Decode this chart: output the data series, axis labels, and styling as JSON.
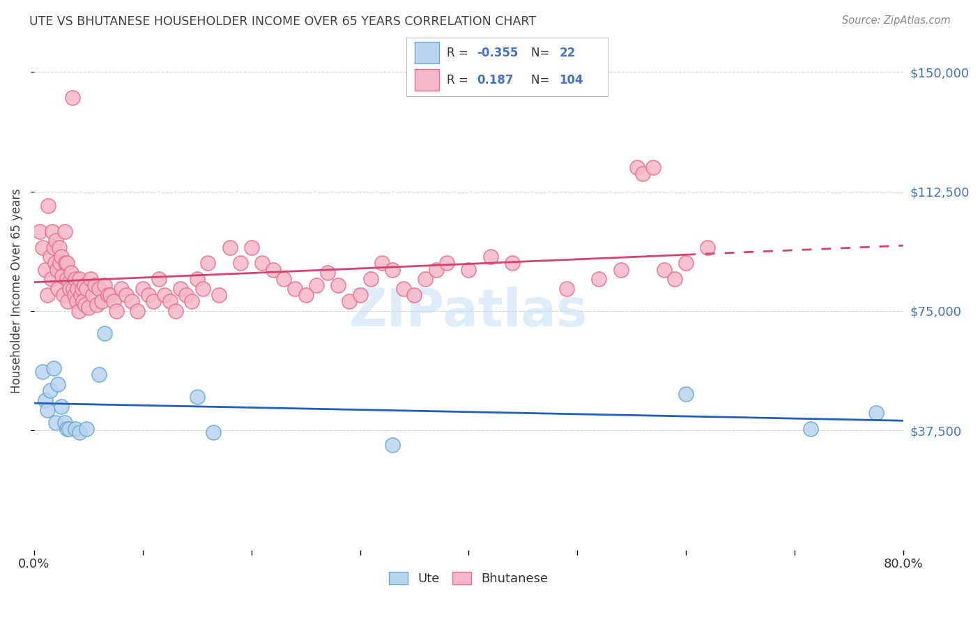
{
  "title": "UTE VS BHUTANESE HOUSEHOLDER INCOME OVER 65 YEARS CORRELATION CHART",
  "source": "Source: ZipAtlas.com",
  "ylabel": "Householder Income Over 65 years",
  "ytick_labels": [
    "$37,500",
    "$75,000",
    "$112,500",
    "$150,000"
  ],
  "ytick_values": [
    37500,
    75000,
    112500,
    150000
  ],
  "legend_ute_r": "-0.355",
  "legend_ute_n": "22",
  "legend_bhutanese_r": "0.187",
  "legend_bhutanese_n": "104",
  "legend_label_ute": "Ute",
  "legend_label_bhutanese": "Bhutanese",
  "watermark": "ZIPatlas",
  "ute_color": "#bad4ee",
  "ute_edge_color": "#6aaad4",
  "bhutanese_color": "#f5b8cb",
  "bhutanese_edge_color": "#e8708e",
  "trend_ute_color": "#2060c0",
  "trend_bhutanese_color": "#d84070",
  "grid_color": "#d0d0d0",
  "background_color": "#ffffff",
  "text_color": "#4472c4",
  "title_color": "#404040",
  "xlim": [
    0.0,
    0.8
  ],
  "ylim": [
    0,
    162500
  ],
  "ute_x": [
    0.008,
    0.01,
    0.012,
    0.015,
    0.018,
    0.02,
    0.022,
    0.025,
    0.028,
    0.03,
    0.032,
    0.038,
    0.042,
    0.048,
    0.06,
    0.065,
    0.15,
    0.165,
    0.33,
    0.6,
    0.715,
    0.775
  ],
  "ute_y": [
    56000,
    47000,
    44000,
    50000,
    57000,
    40000,
    52000,
    45000,
    40000,
    38000,
    38000,
    38000,
    37000,
    38000,
    55000,
    68000,
    48000,
    37000,
    33000,
    49000,
    38000,
    43000
  ],
  "bhutanese_x": [
    0.005,
    0.008,
    0.01,
    0.012,
    0.013,
    0.015,
    0.016,
    0.017,
    0.018,
    0.019,
    0.02,
    0.021,
    0.022,
    0.023,
    0.024,
    0.025,
    0.026,
    0.027,
    0.028,
    0.029,
    0.03,
    0.03,
    0.031,
    0.032,
    0.033,
    0.034,
    0.035,
    0.036,
    0.037,
    0.038,
    0.039,
    0.04,
    0.041,
    0.042,
    0.043,
    0.044,
    0.045,
    0.046,
    0.047,
    0.048,
    0.05,
    0.052,
    0.054,
    0.056,
    0.058,
    0.06,
    0.062,
    0.065,
    0.068,
    0.07,
    0.073,
    0.076,
    0.08,
    0.085,
    0.09,
    0.095,
    0.1,
    0.105,
    0.11,
    0.115,
    0.12,
    0.125,
    0.13,
    0.135,
    0.14,
    0.145,
    0.15,
    0.155,
    0.16,
    0.17,
    0.18,
    0.19,
    0.2,
    0.21,
    0.22,
    0.23,
    0.24,
    0.25,
    0.26,
    0.27,
    0.28,
    0.29,
    0.3,
    0.31,
    0.32,
    0.33,
    0.34,
    0.35,
    0.36,
    0.37,
    0.38,
    0.4,
    0.42,
    0.44,
    0.49,
    0.52,
    0.54,
    0.555,
    0.56,
    0.57,
    0.58,
    0.59,
    0.6,
    0.62
  ],
  "bhutanese_y": [
    100000,
    95000,
    88000,
    80000,
    108000,
    92000,
    85000,
    100000,
    95000,
    90000,
    97000,
    88000,
    82000,
    95000,
    90000,
    92000,
    86000,
    80000,
    100000,
    90000,
    85000,
    90000,
    78000,
    84000,
    82000,
    87000,
    142000,
    82000,
    80000,
    85000,
    78000,
    82000,
    75000,
    85000,
    80000,
    82000,
    78000,
    83000,
    77000,
    82000,
    76000,
    85000,
    80000,
    83000,
    77000,
    82000,
    78000,
    83000,
    80000,
    80000,
    78000,
    75000,
    82000,
    80000,
    78000,
    75000,
    82000,
    80000,
    78000,
    85000,
    80000,
    78000,
    75000,
    82000,
    80000,
    78000,
    85000,
    82000,
    90000,
    80000,
    95000,
    90000,
    95000,
    90000,
    88000,
    85000,
    82000,
    80000,
    83000,
    87000,
    83000,
    78000,
    80000,
    85000,
    90000,
    88000,
    82000,
    80000,
    85000,
    88000,
    90000,
    88000,
    92000,
    90000,
    82000,
    85000,
    88000,
    120000,
    118000,
    120000,
    88000,
    85000,
    90000,
    95000
  ]
}
